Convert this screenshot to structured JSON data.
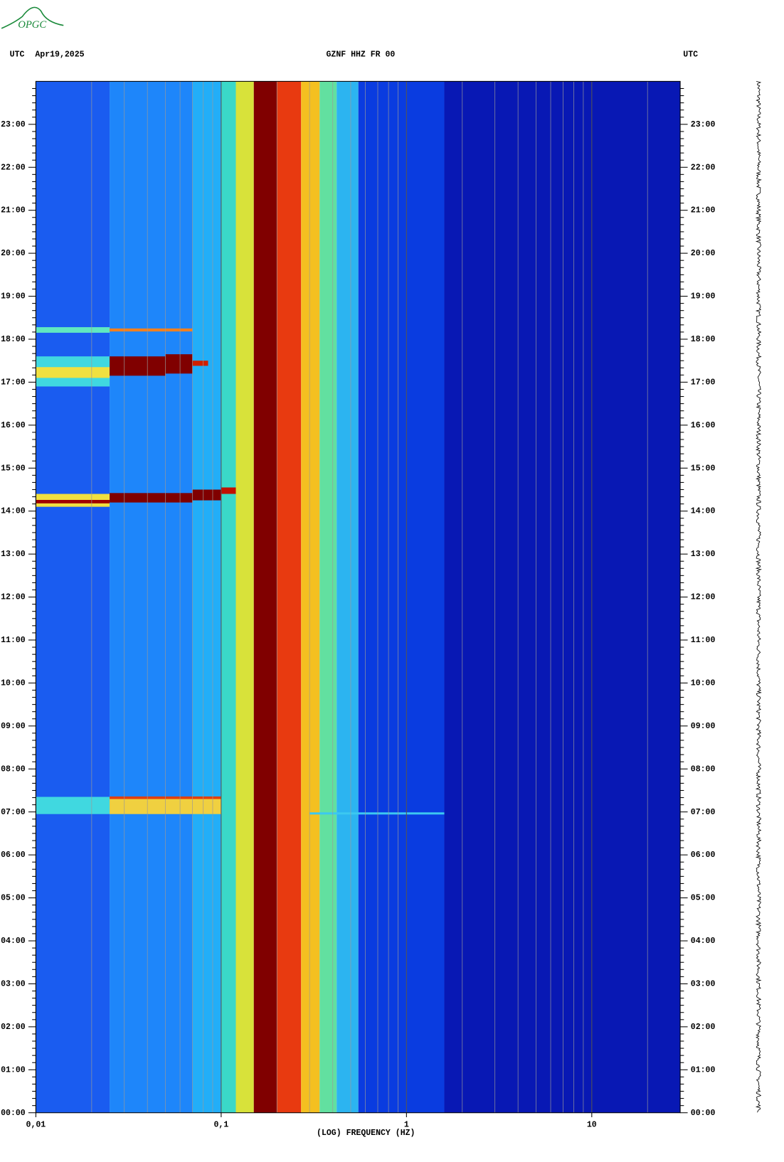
{
  "chart_data": {
    "type": "spectrogram",
    "logo": "OPGC",
    "left_label": "UTC",
    "date": "Apr19,2025",
    "title": "GZNF HHZ FR 00",
    "right_label": "UTC",
    "xlabel": "(LOG) FREQUENCY (HZ)",
    "xscale": "log",
    "xlim": [
      0.01,
      30
    ],
    "xticks": [
      {
        "value": 0.01,
        "label": "0,01"
      },
      {
        "value": 0.1,
        "label": "0,1"
      },
      1,
      10
    ],
    "xminor": [
      0.02,
      0.03,
      0.04,
      0.05,
      0.06,
      0.07,
      0.08,
      0.09,
      0.2,
      0.3,
      0.4,
      0.5,
      0.6,
      0.7,
      0.8,
      0.9,
      2,
      3,
      4,
      5,
      6,
      7,
      8,
      9,
      20
    ],
    "ylim": [
      0,
      24
    ],
    "yticks": [
      {
        "value": 0,
        "label": "00:00"
      },
      {
        "value": 1,
        "label": "01:00"
      },
      {
        "value": 2,
        "label": "02:00"
      },
      {
        "value": 3,
        "label": "03:00"
      },
      {
        "value": 4,
        "label": "04:00"
      },
      {
        "value": 5,
        "label": "05:00"
      },
      {
        "value": 6,
        "label": "06:00"
      },
      {
        "value": 7,
        "label": "07:00"
      },
      {
        "value": 8,
        "label": "08:00"
      },
      {
        "value": 9,
        "label": "09:00"
      },
      {
        "value": 10,
        "label": "10:00"
      },
      {
        "value": 11,
        "label": "11:00"
      },
      {
        "value": 12,
        "label": "12:00"
      },
      {
        "value": 13,
        "label": "13:00"
      },
      {
        "value": 14,
        "label": "14:00"
      },
      {
        "value": 15,
        "label": "15:00"
      },
      {
        "value": 16,
        "label": "16:00"
      },
      {
        "value": 17,
        "label": "17:00"
      },
      {
        "value": 18,
        "label": "18:00"
      },
      {
        "value": 19,
        "label": "19:00"
      },
      {
        "value": 20,
        "label": "20:00"
      },
      {
        "value": 21,
        "label": "21:00"
      },
      {
        "value": 22,
        "label": "22:00"
      },
      {
        "value": 23,
        "label": "23:00"
      }
    ],
    "bands": [
      {
        "from": 0.01,
        "to": 0.025,
        "color": "#1a5cf0"
      },
      {
        "from": 0.025,
        "to": 0.07,
        "color": "#1e86fa"
      },
      {
        "from": 0.07,
        "to": 0.1,
        "color": "#22aef8"
      },
      {
        "from": 0.1,
        "to": 0.12,
        "color": "#3ad8c8"
      },
      {
        "from": 0.12,
        "to": 0.15,
        "color": "#d8e23a"
      },
      {
        "from": 0.15,
        "to": 0.2,
        "color": "#800000"
      },
      {
        "from": 0.2,
        "to": 0.27,
        "color": "#e83a10"
      },
      {
        "from": 0.27,
        "to": 0.34,
        "color": "#f4c020"
      },
      {
        "from": 0.34,
        "to": 0.42,
        "color": "#62e0a0"
      },
      {
        "from": 0.42,
        "to": 0.55,
        "color": "#2cb4f0"
      },
      {
        "from": 0.55,
        "to": 1.6,
        "color": "#0a3ce0"
      },
      {
        "from": 1.6,
        "to": 30,
        "color": "#0818b4"
      }
    ],
    "events": [
      {
        "start": 14.1,
        "end": 14.4,
        "from": 0.01,
        "to": 0.025,
        "color": "#f0e040"
      },
      {
        "start": 14.18,
        "end": 14.26,
        "from": 0.01,
        "to": 0.025,
        "color": "#a00000"
      },
      {
        "start": 14.2,
        "end": 14.42,
        "from": 0.025,
        "to": 0.07,
        "color": "#800000"
      },
      {
        "start": 14.25,
        "end": 14.5,
        "from": 0.07,
        "to": 0.1,
        "color": "#800000"
      },
      {
        "start": 14.4,
        "end": 14.55,
        "from": 0.1,
        "to": 0.12,
        "color": "#c01000"
      },
      {
        "start": 16.9,
        "end": 17.6,
        "from": 0.01,
        "to": 0.025,
        "color": "#40d8e0"
      },
      {
        "start": 17.1,
        "end": 17.35,
        "from": 0.01,
        "to": 0.025,
        "color": "#f0e040"
      },
      {
        "start": 17.15,
        "end": 17.6,
        "from": 0.025,
        "to": 0.05,
        "color": "#800000"
      },
      {
        "start": 17.2,
        "end": 17.65,
        "from": 0.05,
        "to": 0.07,
        "color": "#800000"
      },
      {
        "start": 17.38,
        "end": 17.5,
        "from": 0.07,
        "to": 0.085,
        "color": "#d02000"
      },
      {
        "start": 18.15,
        "end": 18.28,
        "from": 0.01,
        "to": 0.025,
        "color": "#60e8c0"
      },
      {
        "start": 18.18,
        "end": 18.25,
        "from": 0.025,
        "to": 0.07,
        "color": "#f08020"
      },
      {
        "start": 6.95,
        "end": 7.35,
        "from": 0.01,
        "to": 0.025,
        "color": "#40d8e0"
      },
      {
        "start": 6.95,
        "end": 7.35,
        "from": 0.025,
        "to": 0.1,
        "color": "#f0d040"
      },
      {
        "start": 7.3,
        "end": 7.36,
        "from": 0.025,
        "to": 0.1,
        "color": "#e04010"
      },
      {
        "start": 6.94,
        "end": 6.99,
        "from": 0.3,
        "to": 1.6,
        "color": "#3cc8f0"
      }
    ]
  }
}
